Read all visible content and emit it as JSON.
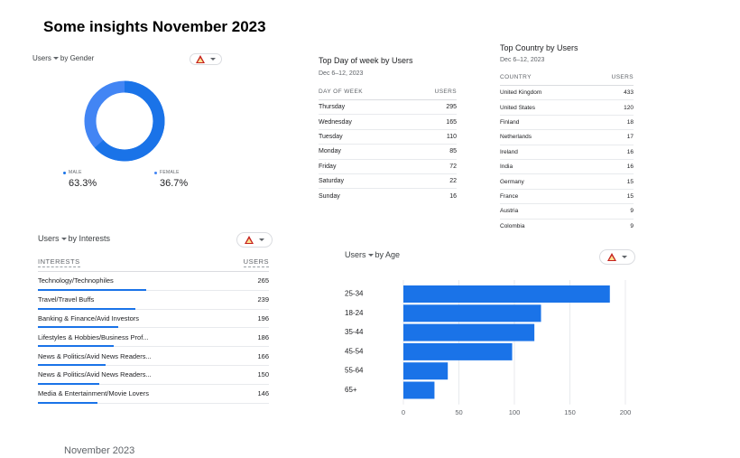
{
  "page": {
    "title": "Some insights November 2023",
    "footer": "November 2023"
  },
  "gender": {
    "label_metric": "Users",
    "label_rest": "by Gender",
    "male_label": "MALE",
    "male_pct": "63.3%",
    "male_value": 63.3,
    "male_color": "#1a73e8",
    "female_label": "FEMALE",
    "female_pct": "36.7%",
    "female_value": 36.7,
    "female_color": "#4285f4"
  },
  "dow": {
    "title": "Top Day of week by Users",
    "subtitle": "Dec 6–12, 2023",
    "col1": "DAY OF WEEK",
    "col2": "USERS",
    "rows": [
      {
        "k": "Thursday",
        "v": "295"
      },
      {
        "k": "Wednesday",
        "v": "165"
      },
      {
        "k": "Tuesday",
        "v": "110"
      },
      {
        "k": "Monday",
        "v": "85"
      },
      {
        "k": "Friday",
        "v": "72"
      },
      {
        "k": "Saturday",
        "v": "22"
      },
      {
        "k": "Sunday",
        "v": "16"
      }
    ]
  },
  "country": {
    "title": "Top Country by Users",
    "subtitle": "Dec 6–12, 2023",
    "col1": "COUNTRY",
    "col2": "USERS",
    "rows": [
      {
        "k": "United Kingdom",
        "v": "433"
      },
      {
        "k": "United States",
        "v": "120"
      },
      {
        "k": "Finland",
        "v": "18"
      },
      {
        "k": "Netherlands",
        "v": "17"
      },
      {
        "k": "Ireland",
        "v": "16"
      },
      {
        "k": "India",
        "v": "16"
      },
      {
        "k": "Germany",
        "v": "15"
      },
      {
        "k": "France",
        "v": "15"
      },
      {
        "k": "Austria",
        "v": "9"
      },
      {
        "k": "Colombia",
        "v": "9"
      }
    ]
  },
  "interests": {
    "label_metric": "Users",
    "label_rest": "by Interests",
    "col1": "INTERESTS",
    "col2": "USERS",
    "max": 265,
    "rows": [
      {
        "k": "Technology/Technophiles",
        "v": "265",
        "n": 265
      },
      {
        "k": "Travel/Travel Buffs",
        "v": "239",
        "n": 239
      },
      {
        "k": "Banking & Finance/Avid Investors",
        "v": "196",
        "n": 196
      },
      {
        "k": "Lifestyles & Hobbies/Business Prof...",
        "v": "186",
        "n": 186
      },
      {
        "k": "News & Politics/Avid News Readers...",
        "v": "166",
        "n": 166
      },
      {
        "k": "News & Politics/Avid News Readers...",
        "v": "150",
        "n": 150
      },
      {
        "k": "Media & Entertainment/Movie Lovers",
        "v": "146",
        "n": 146
      }
    ]
  },
  "age": {
    "label_metric": "Users",
    "label_rest": "by Age"
  },
  "chart_data": {
    "type": "bar",
    "orientation": "horizontal",
    "categories": [
      "25-34",
      "18-24",
      "35-44",
      "45-54",
      "55-64",
      "65+"
    ],
    "values": [
      186,
      124,
      118,
      98,
      40,
      28
    ],
    "xlim": [
      0,
      200
    ],
    "xticks": [
      "0",
      "50",
      "100",
      "150",
      "200"
    ],
    "bar_color": "#1a73e8",
    "grid": true
  }
}
